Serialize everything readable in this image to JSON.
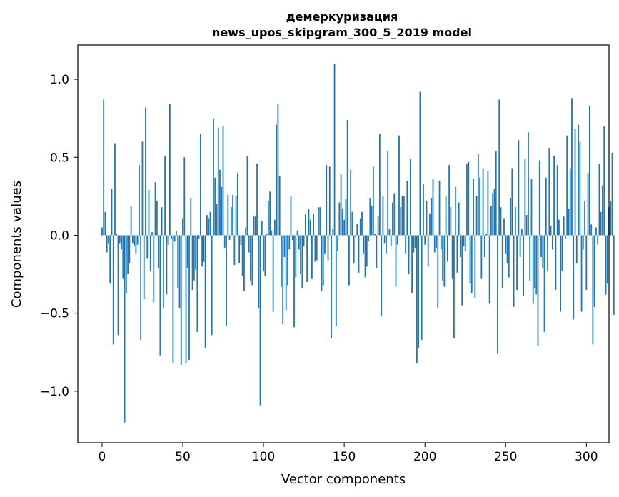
{
  "chart_data": {
    "type": "bar",
    "title_lines": [
      "демеркуризация",
      "news_upos_skipgram_300_5_2019 model"
    ],
    "xlabel": "Vector components",
    "ylabel": "Components values",
    "xlim": [
      -15,
      314
    ],
    "ylim": [
      -1.33,
      1.22
    ],
    "xticks": [
      0,
      50,
      100,
      150,
      200,
      250,
      300
    ],
    "yticks": [
      -1.0,
      -0.5,
      0.0,
      0.5,
      1.0
    ],
    "ytick_labels": [
      "−1.0",
      "−0.5",
      "0.0",
      "0.5",
      "1.0"
    ],
    "bar_color": "#1f77b4",
    "grid": false,
    "values": [
      0.05,
      0.87,
      0.15,
      -0.11,
      -0.05,
      -0.31,
      0.3,
      -0.7,
      0.59,
      0.01,
      -0.64,
      -0.05,
      -0.09,
      -0.28,
      -1.2,
      -0.37,
      -0.25,
      -0.18,
      0.19,
      -0.05,
      -0.07,
      -0.12,
      -0.06,
      0.45,
      -0.67,
      0.6,
      -0.41,
      0.82,
      -0.15,
      0.29,
      -0.23,
      0.02,
      -0.43,
      0.34,
      0.22,
      -0.21,
      -0.77,
      0.18,
      -0.47,
      0.51,
      -0.38,
      -0.06,
      0.84,
      -0.02,
      -0.82,
      -0.04,
      0.03,
      -0.34,
      -0.47,
      -0.83,
      0.11,
      0.5,
      -0.82,
      -0.21,
      -0.8,
      0.24,
      -0.35,
      -0.29,
      -0.22,
      -0.62,
      -0.02,
      0.65,
      -0.2,
      -0.17,
      -0.72,
      0.13,
      0.11,
      0.15,
      -0.64,
      0.75,
      0.37,
      0.2,
      0.69,
      0.42,
      0.31,
      0.7,
      -0.08,
      -0.58,
      0.26,
      -0.03,
      0.18,
      0.26,
      -0.19,
      0.25,
      0.4,
      -0.18,
      -0.06,
      -0.26,
      -0.36,
      0.05,
      0.51,
      -0.11,
      -0.29,
      -0.32,
      0.12,
      0.12,
      0.46,
      -0.47,
      -1.09,
      0.09,
      -0.23,
      -0.26,
      0.01,
      0.22,
      0.28,
      0.03,
      -0.49,
      0.1,
      0.71,
      0.84,
      0.38,
      -0.33,
      -0.57,
      -0.14,
      -0.48,
      -0.32,
      -0.09,
      0.25,
      -0.03,
      -0.59,
      -0.27,
      0.03,
      -0.09,
      -0.25,
      -0.34,
      -0.07,
      0.14,
      -0.3,
      0.17,
      0.1,
      -0.28,
      0.14,
      -0.17,
      -0.16,
      0.18,
      0.18,
      -0.36,
      -0.32,
      -0.12,
      0.45,
      -0.16,
      0.44,
      -0.66,
      0.04,
      1.1,
      -0.58,
      -0.1,
      0.21,
      0.39,
      0.17,
      0.1,
      0.23,
      0.74,
      -0.32,
      0.42,
      0.15,
      -0.18,
      -0.01,
      0.07,
      -0.24,
      0.11,
      0.15,
      -0.12,
      -0.27,
      -0.2,
      -0.04,
      0.24,
      0.19,
      0.44,
      0.01,
      -0.21,
      0.12,
      0.65,
      -0.52,
      0.25,
      -0.05,
      -0.12,
      0.54,
      0.04,
      -0.07,
      0.21,
      0.27,
      -0.33,
      -0.06,
      0.64,
      0.18,
      0.25,
      0.25,
      -0.12,
      0.35,
      -0.25,
      0.49,
      -0.37,
      -0.11,
      -0.08,
      -0.82,
      -0.72,
      0.92,
      -0.67,
      0.33,
      -0.06,
      0.22,
      -0.2,
      0.14,
      0.24,
      0.36,
      -0.11,
      -0.08,
      -0.47,
      0.35,
      -0.09,
      -0.29,
      -0.33,
      0.25,
      -0.17,
      0.45,
      0.18,
      -0.28,
      -0.66,
      0.31,
      -0.24,
      0.21,
      -0.14,
      -0.45,
      -0.07,
      -0.1,
      0.46,
      0.47,
      -0.31,
      -0.37,
      0.36,
      -0.4,
      0.25,
      0.52,
      0.37,
      -0.28,
      0.43,
      -0.14,
      0.01,
      0.41,
      -0.44,
      0.19,
      0.27,
      0.3,
      0.54,
      -0.76,
      0.87,
      0.18,
      -0.34,
      0.11,
      -0.12,
      -0.18,
      -0.27,
      0.24,
      0.43,
      -0.46,
      0.18,
      -0.35,
      0.61,
      -0.14,
      0.04,
      -0.39,
      0.49,
      0.13,
      0.66,
      -0.29,
      0.36,
      -0.44,
      -0.34,
      -0.38,
      -0.71,
      0.48,
      -0.14,
      -0.21,
      -0.62,
      0.37,
      -0.23,
      0.56,
      0.06,
      -0.09,
      0.51,
      -0.35,
      0.45,
      0.1,
      -0.49,
      -0.23,
      0.12,
      -0.02,
      0.64,
      0.17,
      0.43,
      0.88,
      -0.54,
      0.68,
      -0.18,
      0.71,
      0.6,
      -0.49,
      -0.09,
      0.22,
      -0.35,
      0.4,
      0.83,
      0.07,
      -0.7,
      -0.46,
      0.05,
      -0.06,
      0.46,
      0.15,
      0.32,
      0.7,
      -0.38,
      -0.31,
      0.18,
      0.22,
      0.53,
      -0.51
    ]
  }
}
